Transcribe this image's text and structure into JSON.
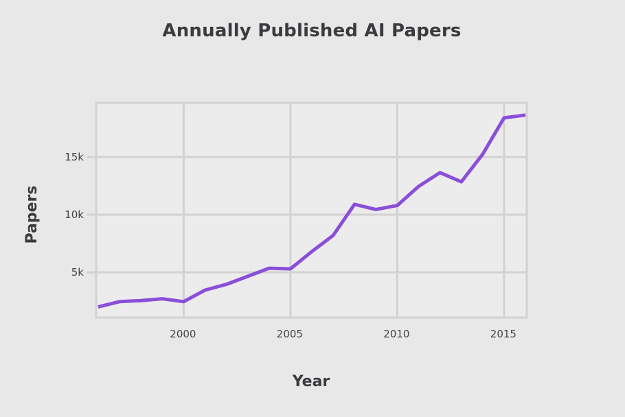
{
  "chart_data": {
    "type": "line",
    "title": "Annually Published AI Papers",
    "xlabel": "Year",
    "ylabel": "Papers",
    "x": [
      1996,
      1997,
      1998,
      1999,
      2000,
      2001,
      2002,
      2003,
      2004,
      2005,
      2006,
      2007,
      2008,
      2009,
      2010,
      2011,
      2012,
      2013,
      2014,
      2015,
      2016
    ],
    "series": [
      {
        "name": "Papers",
        "color": "#8a4fd8",
        "values": [
          2000,
          2450,
          2550,
          2700,
          2450,
          3450,
          3950,
          4650,
          5350,
          5300,
          6800,
          8200,
          10900,
          10450,
          10800,
          12450,
          13650,
          12850,
          15250,
          18400,
          18650
        ]
      }
    ],
    "xlim": [
      1996,
      2016
    ],
    "ylim": [
      1000,
      19800
    ],
    "x_ticks": [
      2000,
      2005,
      2010,
      2015
    ],
    "x_tick_labels": [
      "2000",
      "2005",
      "2010",
      "2015"
    ],
    "y_ticks": [
      5000,
      10000,
      15000
    ],
    "y_tick_labels": [
      "5k",
      "10k",
      "15k"
    ],
    "grid": true,
    "legend": "none"
  },
  "style": {
    "background": "#e8e8e8",
    "plot_background": "#ececec",
    "grid_color": "#d2d2d2",
    "line_color": "#8a4fd8"
  }
}
